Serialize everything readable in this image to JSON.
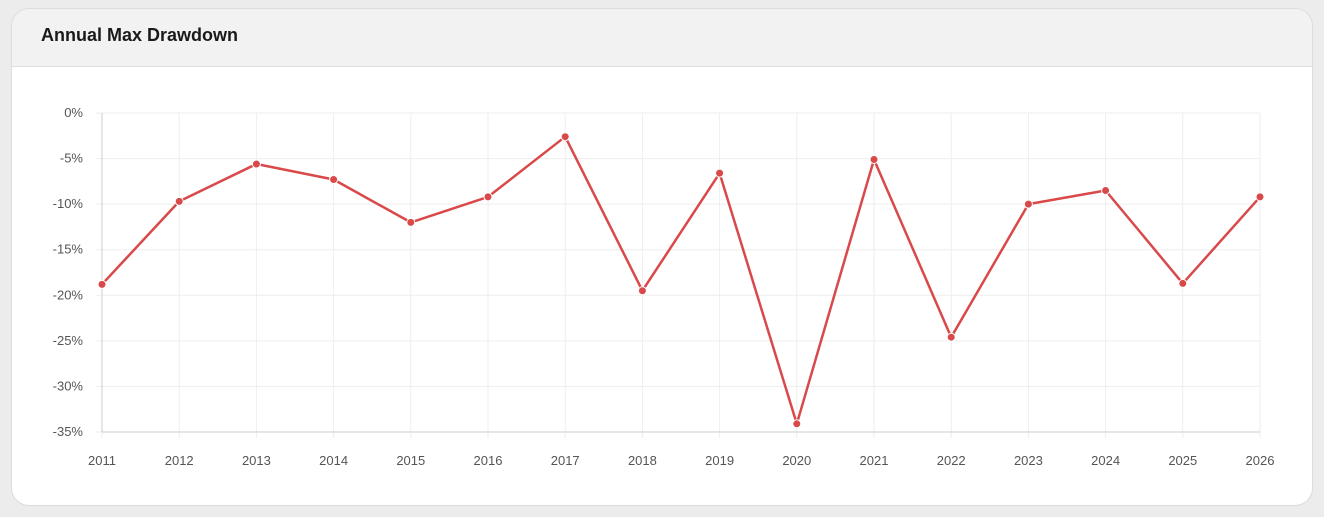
{
  "card": {
    "title": "Annual Max Drawdown"
  },
  "colors": {
    "line": "#d9494a",
    "grid": "#eeeeee",
    "axis": "#cccccc"
  },
  "chart_data": {
    "type": "line",
    "title": "Annual Max Drawdown",
    "xlabel": "",
    "ylabel": "",
    "x": [
      "2011",
      "2012",
      "2013",
      "2014",
      "2015",
      "2016",
      "2017",
      "2018",
      "2019",
      "2020",
      "2021",
      "2022",
      "2023",
      "2024",
      "2025",
      "2026"
    ],
    "series": [
      {
        "values": [
          -18.8,
          -9.7,
          -5.6,
          -7.3,
          -12.0,
          -9.2,
          -2.6,
          -19.5,
          -6.6,
          -34.1,
          -5.1,
          -24.6,
          -10.0,
          -8.5,
          -18.7,
          -9.2
        ]
      }
    ],
    "ylim": [
      -35,
      0
    ],
    "yticks": [
      0,
      -5,
      -10,
      -15,
      -20,
      -25,
      -30,
      -35
    ],
    "ytick_labels": [
      "0%",
      "-5%",
      "-10%",
      "-15%",
      "-20%",
      "-25%",
      "-30%",
      "-35%"
    ],
    "grid": true,
    "legend": "none"
  }
}
